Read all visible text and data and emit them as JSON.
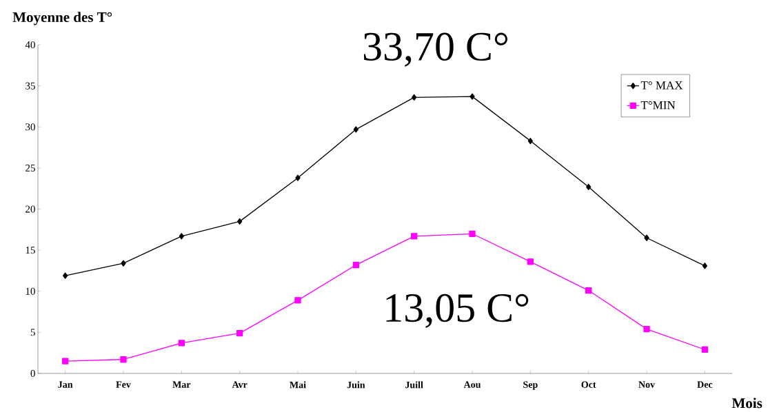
{
  "chart_data": {
    "type": "line",
    "ylabel": "Moyenne des T°",
    "xlabel": "Mois",
    "categories": [
      "Jan",
      "Fev",
      "Mar",
      "Avr",
      "Mai",
      "Juin",
      "Juill",
      "Aou",
      "Sep",
      "Oct",
      "Nov",
      "Dec"
    ],
    "series": [
      {
        "name": "T° MAX",
        "color": "#000000",
        "marker": "diamond",
        "values": [
          11.9,
          13.4,
          16.7,
          18.5,
          23.8,
          29.7,
          33.6,
          33.7,
          28.3,
          22.7,
          16.5,
          13.1
        ]
      },
      {
        "name": "T°MIN",
        "color": "#ff00ff",
        "marker": "square",
        "values": [
          1.5,
          1.7,
          3.7,
          4.9,
          8.9,
          13.2,
          16.7,
          17.0,
          13.6,
          10.1,
          5.4,
          2.9
        ]
      }
    ],
    "ylim": [
      0,
      40
    ],
    "yticks": [
      0,
      5,
      10,
      15,
      20,
      25,
      30,
      35,
      40
    ],
    "annotations": [
      "33,70 C°",
      "13,05 C°"
    ],
    "legend": "top right",
    "grid": false,
    "line_style": "solid"
  }
}
